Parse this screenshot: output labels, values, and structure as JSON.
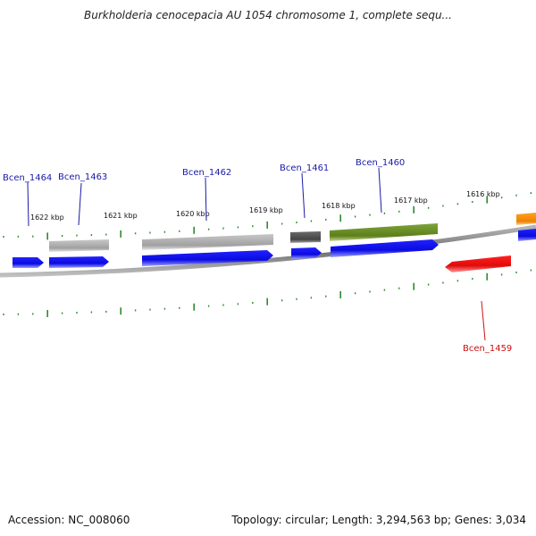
{
  "title": "Burkholderia cenocepacia AU 1054 chromosome 1, complete sequ...",
  "footer": {
    "accession": "Accession: NC_008060",
    "summary": "Topology: circular; Length: 3,294,563 bp; Genes: 3,034"
  },
  "colors": {
    "forward_gene": "#1010ee",
    "reverse_gene": "#ee1111",
    "backbone": "#8a8a8a",
    "tick": "#2e8b2e",
    "label_forward": "#1a1aa8",
    "label_reverse": "#cc1111"
  },
  "ruler": {
    "unit": "kbp",
    "labels": [
      "1622 kbp",
      "1621 kbp",
      "1620 kbp",
      "1619 kbp",
      "1618 kbp",
      "1617 kbp",
      "1616 kbp"
    ]
  },
  "genes": [
    {
      "name": "Bcen_1464",
      "strand": "+"
    },
    {
      "name": "Bcen_1463",
      "strand": "+"
    },
    {
      "name": "Bcen_1462",
      "strand": "+"
    },
    {
      "name": "Bcen_1461",
      "strand": "+"
    },
    {
      "name": "Bcen_1460",
      "strand": "+"
    },
    {
      "name": "Bcen_1459",
      "strand": "-"
    }
  ],
  "feature_colors": [
    "#b0b0b0",
    "#a8a8a8",
    "#555555",
    "#6b8e23",
    "#ff8c00"
  ]
}
